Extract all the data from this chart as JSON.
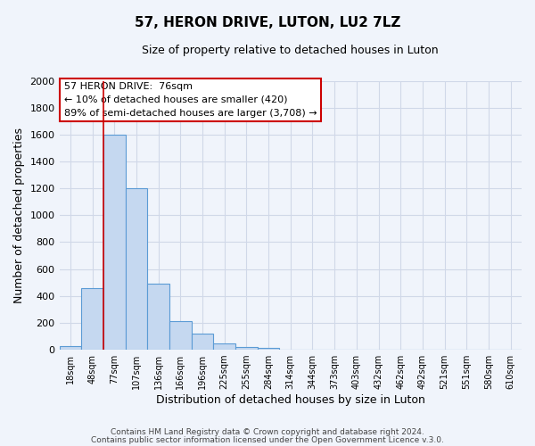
{
  "title": "57, HERON DRIVE, LUTON, LU2 7LZ",
  "subtitle": "Size of property relative to detached houses in Luton",
  "xlabel": "Distribution of detached houses by size in Luton",
  "ylabel": "Number of detached properties",
  "bar_values": [
    30,
    460,
    1600,
    1200,
    490,
    210,
    120,
    45,
    20,
    15,
    0,
    0,
    0,
    0,
    0,
    0,
    0,
    0,
    0,
    0,
    0
  ],
  "bin_labels": [
    "18sqm",
    "48sqm",
    "77sqm",
    "107sqm",
    "136sqm",
    "166sqm",
    "196sqm",
    "225sqm",
    "255sqm",
    "284sqm",
    "314sqm",
    "344sqm",
    "373sqm",
    "403sqm",
    "432sqm",
    "462sqm",
    "492sqm",
    "521sqm",
    "551sqm",
    "580sqm",
    "610sqm"
  ],
  "bar_color": "#c5d8f0",
  "bar_edge_color": "#5b9bd5",
  "grid_color": "#d0d8e8",
  "background_color": "#f0f4fb",
  "vline_color": "#cc0000",
  "vline_position": 2.0,
  "annotation_line1": "57 HERON DRIVE:  76sqm",
  "annotation_line2": "← 10% of detached houses are smaller (420)",
  "annotation_line3": "89% of semi-detached houses are larger (3,708) →",
  "annotation_box_color": "#ffffff",
  "annotation_box_edge_color": "#cc0000",
  "ylim": [
    0,
    2000
  ],
  "yticks": [
    0,
    200,
    400,
    600,
    800,
    1000,
    1200,
    1400,
    1600,
    1800,
    2000
  ],
  "footnote1": "Contains HM Land Registry data © Crown copyright and database right 2024.",
  "footnote2": "Contains public sector information licensed under the Open Government Licence v.3.0.",
  "n_bars": 21
}
